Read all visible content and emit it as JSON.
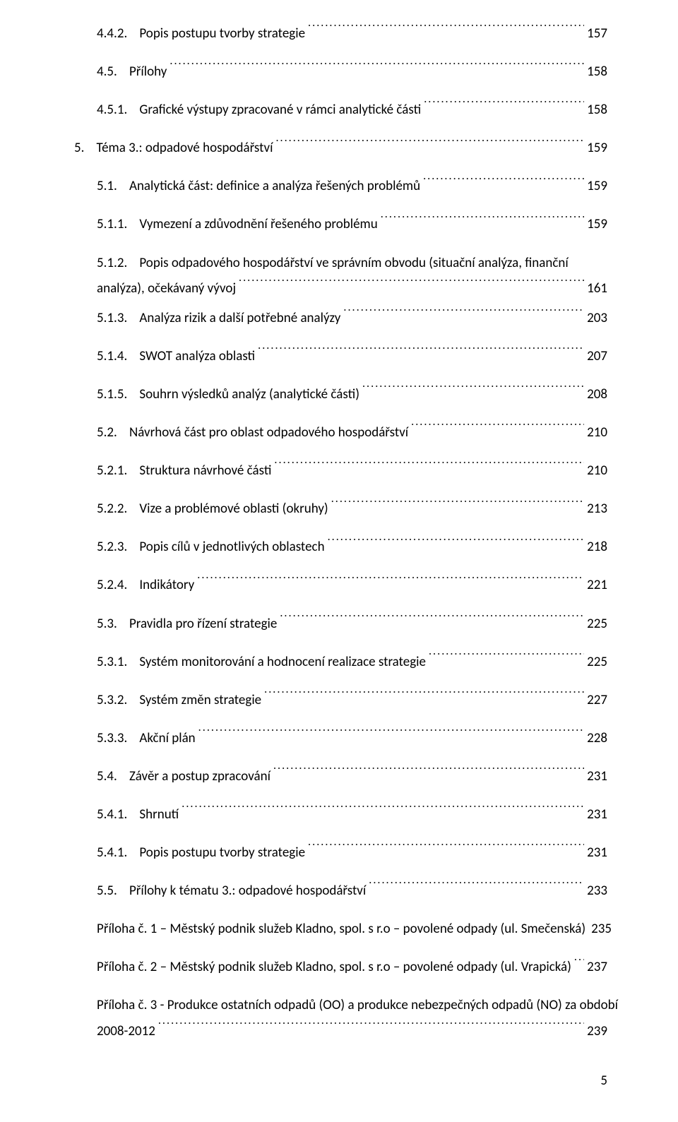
{
  "entries": [
    {
      "indent": "ind-3",
      "num": "4.4.2.",
      "text": "Popis postupu tvorby strategie",
      "page": "157",
      "gap": true
    },
    {
      "indent": "ind-2",
      "num": "4.5.",
      "text": "Přílohy",
      "page": "158",
      "gap": true
    },
    {
      "indent": "ind-3",
      "num": "4.5.1.",
      "text": "Grafické výstupy zpracované v rámci analytické části",
      "page": "158",
      "gap": true
    },
    {
      "indent": "ind-1",
      "num": "5.",
      "text": "Téma 3.: odpadové hospodářství",
      "page": "159",
      "gap": true
    },
    {
      "indent": "ind-2",
      "num": "5.1.",
      "text": "Analytická část: definice a analýza řešených problémů",
      "page": "159",
      "gap": true
    },
    {
      "indent": "ind-3",
      "num": "5.1.1.",
      "text": "Vymezení a zdůvodnění řešeného problému",
      "page": "159",
      "gap": true
    },
    {
      "indent": "ind-3",
      "num": "5.1.2.",
      "text1": "Popis odpadového hospodářství ve správním obvodu (situační analýza, finanční",
      "text2": "analýza), očekávaný vývoj",
      "page": "161",
      "wrap": true,
      "gap": true
    },
    {
      "indent": "ind-3",
      "num": "5.1.3.",
      "text": "Analýza rizik a další potřebné analýzy",
      "page": "203",
      "gap": true
    },
    {
      "indent": "ind-3",
      "num": "5.1.4.",
      "text": "SWOT analýza oblasti",
      "page": "207",
      "gap": true
    },
    {
      "indent": "ind-3",
      "num": "5.1.5.",
      "text": "Souhrn výsledků analýz (analytické části)",
      "page": "208",
      "gap": true
    },
    {
      "indent": "ind-2",
      "num": "5.2.",
      "text": "Návrhová část pro oblast odpadového hospodářství",
      "page": "210",
      "gap": true
    },
    {
      "indent": "ind-3",
      "num": "5.2.1.",
      "text": "Struktura návrhové části",
      "page": "210",
      "gap": true
    },
    {
      "indent": "ind-3",
      "num": "5.2.2.",
      "text": "Vize a problémové oblasti (okruhy)",
      "page": "213",
      "gap": true
    },
    {
      "indent": "ind-3",
      "num": "5.2.3.",
      "text": "Popis cílů v jednotlivých oblastech",
      "page": "218",
      "gap": true
    },
    {
      "indent": "ind-3",
      "num": "5.2.4.",
      "text": "Indikátory",
      "page": "221",
      "gap": true
    },
    {
      "indent": "ind-2",
      "num": "5.3.",
      "text": "Pravidla pro řízení strategie",
      "page": "225",
      "gap": true
    },
    {
      "indent": "ind-3",
      "num": "5.3.1.",
      "text": "Systém monitorování a hodnocení realizace strategie",
      "page": "225",
      "gap": true
    },
    {
      "indent": "ind-3",
      "num": "5.3.2.",
      "text": "Systém změn strategie",
      "page": "227",
      "gap": true
    },
    {
      "indent": "ind-3",
      "num": "5.3.3.",
      "text": "Akční plán",
      "page": "228",
      "gap": true
    },
    {
      "indent": "ind-2",
      "num": "5.4.",
      "text": "Závěr a postup zpracování",
      "page": "231",
      "gap": true
    },
    {
      "indent": "ind-3",
      "num": "5.4.1.",
      "text": "Shrnutí",
      "page": "231",
      "gap": true
    },
    {
      "indent": "ind-3",
      "num": "5.4.1.",
      "text": "Popis postupu tvorby strategie",
      "page": "231",
      "gap": true
    },
    {
      "indent": "ind-2",
      "num": "5.5.",
      "text": "Přílohy k tématu 3.: odpadové hospodářství",
      "page": "233",
      "gap": true
    },
    {
      "indent": "app",
      "num": "",
      "text": "Příloha č. 1 – Městský podnik služeb Kladno, spol. s r.o – povolené odpady (ul. Smečenská)",
      "page": "235",
      "gap": true
    },
    {
      "indent": "app",
      "num": "",
      "text": "Příloha č. 2 – Městský podnik služeb Kladno, spol. s r.o – povolené odpady (ul. Vrapická)",
      "page": "237",
      "gap": true
    },
    {
      "indent": "app",
      "num": "",
      "text1": "Příloha č. 3 - Produkce ostatních odpadů (OO) a produkce nebezpečných odpadů (NO) za období",
      "text2": "2008-2012",
      "page": "239",
      "wrap": true,
      "gap": false
    }
  ],
  "pageNumber": "5"
}
